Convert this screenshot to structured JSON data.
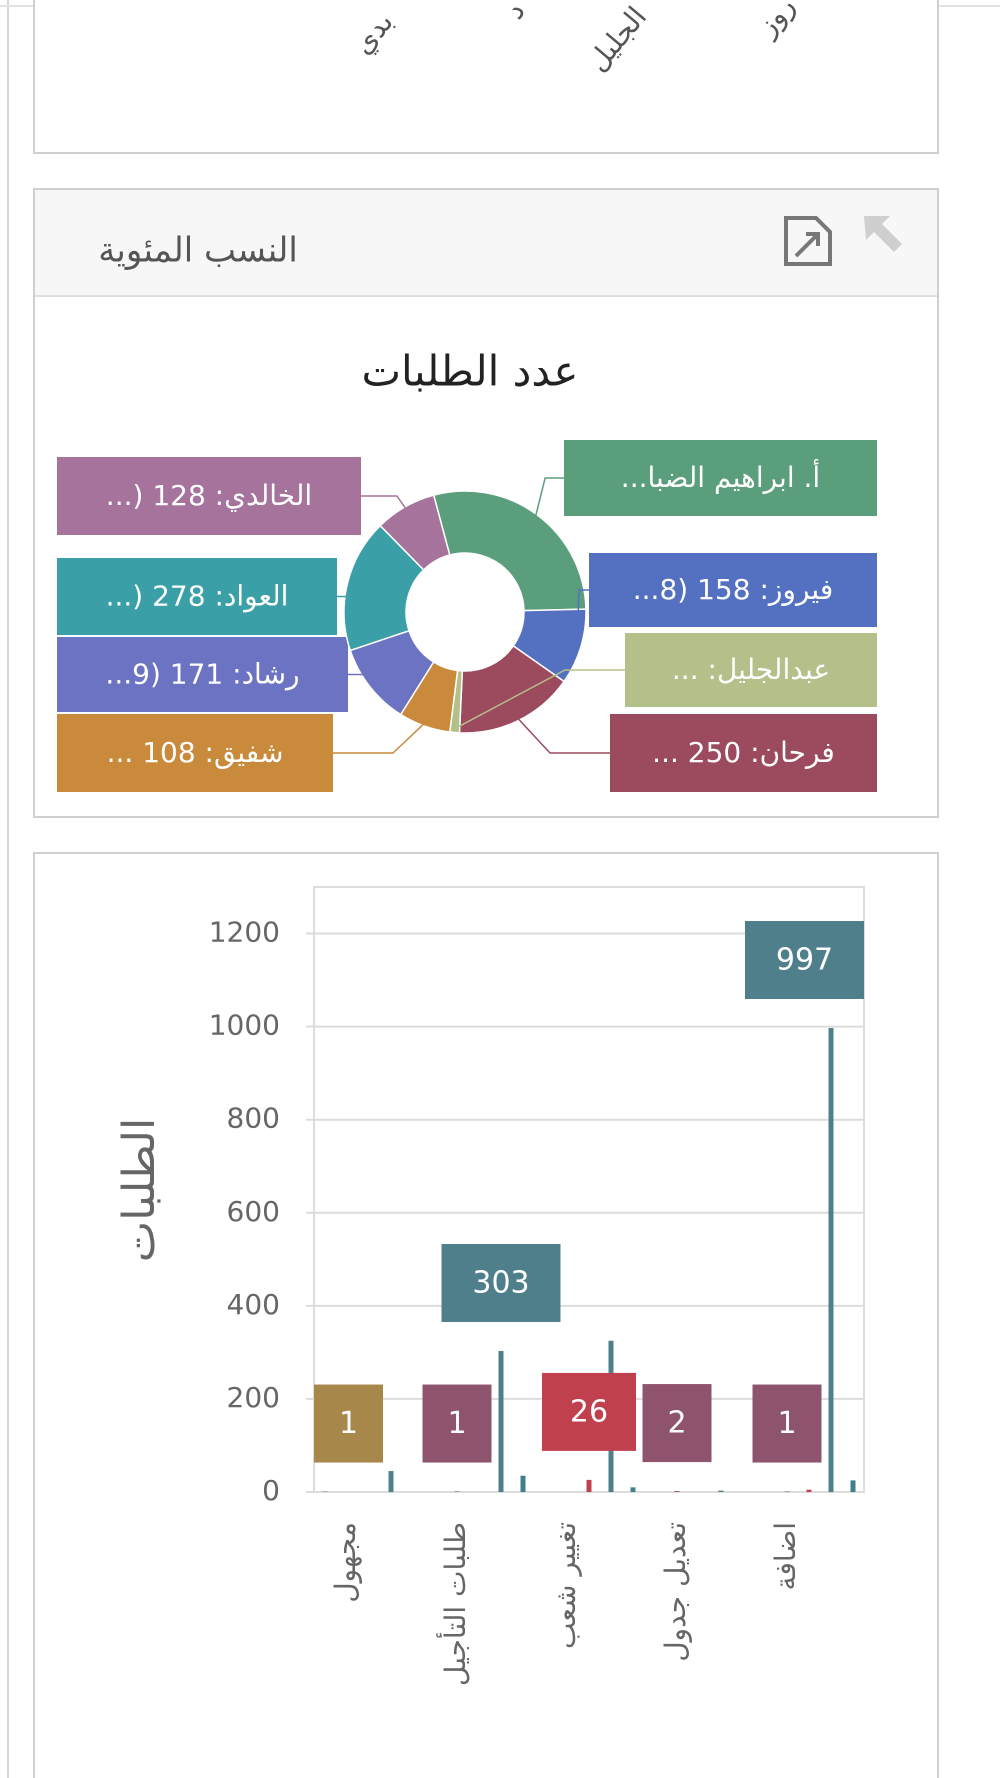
{
  "top_panel_labels": [
    "بدي",
    "د",
    "الجليل",
    "روز"
  ],
  "panel_header": "النسب المئوية",
  "chart_data": [
    {
      "type": "doughnut",
      "title": "عدد الطلبات",
      "categories": [
        "...أ. ابراهيم الضبا",
        "...فيروز: 158 (8",
        "... فرحان: 250",
        "... :عبدالجليل",
        "... شفيق: 108",
        "...رشاد: 171 (9",
        "...) العواد: 278",
        "...) الخالدي: 128"
      ],
      "values": [
        450,
        158,
        250,
        20,
        108,
        171,
        278,
        128
      ],
      "colors": [
        "#5b9e7c",
        "#5470c0",
        "#9c4a5d",
        "#b3c08a",
        "#c98a3c",
        "#6b73c2",
        "#3a9fa6",
        "#a5739b"
      ]
    },
    {
      "type": "bar",
      "ylabel": "الطلبات",
      "categories": [
        "مجهول",
        "طلبات التأجيل",
        "تغيير شعب",
        "تعديل جدول",
        "اضافة"
      ],
      "series": [
        {
          "color": "#a8874b",
          "values": [
            1,
            0,
            0,
            0,
            0
          ],
          "value_labels": [
            "1",
            null,
            null,
            null,
            null
          ]
        },
        {
          "color": "#8e546d",
          "values": [
            0,
            1,
            0,
            2,
            1
          ],
          "value_labels": [
            null,
            "1",
            null,
            "2",
            "1"
          ]
        },
        {
          "color": "#c0414d",
          "values": [
            0,
            0,
            26,
            0,
            5
          ],
          "value_labels": [
            null,
            null,
            "26",
            null,
            null
          ]
        },
        {
          "color": "#4f7f8b",
          "values": [
            45,
            303,
            325,
            3,
            997
          ],
          "value_labels": [
            null,
            "303",
            null,
            null,
            "997"
          ]
        },
        {
          "color": "#3e7f8c",
          "values": [
            0,
            35,
            10,
            0,
            25
          ],
          "value_labels": [
            null,
            null,
            null,
            null,
            null
          ]
        }
      ],
      "ylim": [
        0,
        1300
      ],
      "yticks": [
        0,
        200,
        400,
        600,
        800,
        1000,
        1200
      ],
      "grid": true
    }
  ]
}
